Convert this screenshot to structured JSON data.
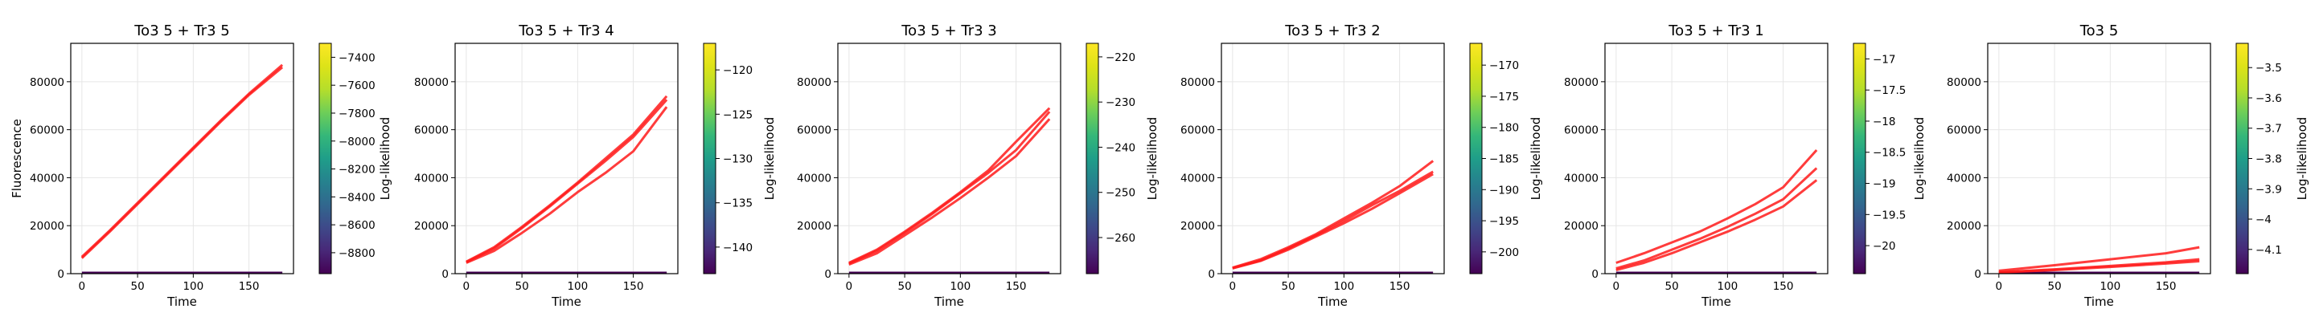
{
  "chart_data": [
    {
      "type": "line",
      "title": "To3 5 + Tr3 5",
      "xlabel": "Time",
      "ylabel": "Fluorescence",
      "xlim": [
        -10,
        190
      ],
      "ylim": [
        0,
        96000
      ],
      "xticks": [
        0,
        50,
        100,
        150
      ],
      "yticks": [
        0,
        20000,
        40000,
        60000,
        80000
      ],
      "series": [
        {
          "x": [
            0,
            25,
            50,
            75,
            100,
            125,
            150,
            180
          ],
          "y": [
            7000,
            18000,
            29500,
            41000,
            52500,
            64000,
            75000,
            87000
          ]
        },
        {
          "x": [
            0,
            25,
            50,
            75,
            100,
            125,
            150,
            180
          ],
          "y": [
            6500,
            17500,
            29000,
            40500,
            52000,
            63500,
            74500,
            86000
          ]
        }
      ],
      "colorbar": {
        "label": "Log-likelihood",
        "range": [
          -8950,
          -7300
        ],
        "ticks": [
          -8800,
          -8600,
          -8400,
          -8200,
          -8000,
          -7800,
          -7600,
          -7400
        ]
      }
    },
    {
      "type": "line",
      "title": "To3 5 + Tr3 4",
      "xlabel": "Time",
      "xlim": [
        -10,
        190
      ],
      "ylim": [
        0,
        96000
      ],
      "xticks": [
        0,
        50,
        100,
        150
      ],
      "yticks": [
        0,
        20000,
        40000,
        60000,
        80000
      ],
      "series": [
        {
          "x": [
            0,
            25,
            50,
            75,
            100,
            125,
            150,
            180
          ],
          "y": [
            5000,
            11000,
            19500,
            28500,
            38000,
            48000,
            58000,
            74000
          ]
        },
        {
          "x": [
            0,
            25,
            50,
            75,
            100,
            125,
            150,
            180
          ],
          "y": [
            4800,
            10500,
            19000,
            28000,
            37500,
            47000,
            57000,
            72500
          ]
        },
        {
          "x": [
            0,
            25,
            50,
            75,
            100,
            125,
            150,
            180
          ],
          "y": [
            4500,
            9500,
            17000,
            25000,
            34000,
            42000,
            51000,
            69500
          ]
        }
      ],
      "colorbar": {
        "label": "Log-likelihood",
        "range": [
          -143,
          -117
        ],
        "ticks": [
          -140,
          -135,
          -130,
          -125,
          -120
        ]
      }
    },
    {
      "type": "line",
      "title": "To3 5 + Tr3 3",
      "xlabel": "Time",
      "xlim": [
        -10,
        190
      ],
      "ylim": [
        0,
        96000
      ],
      "xticks": [
        0,
        50,
        100,
        150
      ],
      "yticks": [
        0,
        20000,
        40000,
        60000,
        80000
      ],
      "series": [
        {
          "x": [
            0,
            25,
            50,
            75,
            100,
            125,
            150,
            180
          ],
          "y": [
            4500,
            10000,
            17500,
            25500,
            34000,
            43000,
            55000,
            69000
          ]
        },
        {
          "x": [
            0,
            25,
            50,
            75,
            100,
            125,
            150,
            180
          ],
          "y": [
            4200,
            9500,
            17000,
            25000,
            33500,
            42000,
            51500,
            67500
          ]
        },
        {
          "x": [
            0,
            25,
            50,
            75,
            100,
            125,
            150,
            180
          ],
          "y": [
            3800,
            8500,
            16000,
            23500,
            31500,
            40000,
            49000,
            64500
          ]
        }
      ],
      "colorbar": {
        "label": "Log-likelihood",
        "range": [
          -268,
          -217
        ],
        "ticks": [
          -260,
          -250,
          -240,
          -230,
          -220
        ]
      }
    },
    {
      "type": "line",
      "title": "To3 5 + Tr3 2",
      "xlabel": "Time",
      "xlim": [
        -10,
        190
      ],
      "ylim": [
        0,
        96000
      ],
      "xticks": [
        0,
        50,
        100,
        150
      ],
      "yticks": [
        0,
        20000,
        40000,
        60000,
        80000
      ],
      "series": [
        {
          "x": [
            0,
            25,
            50,
            75,
            100,
            125,
            150,
            180
          ],
          "y": [
            2500,
            6000,
            11000,
            16500,
            23000,
            29500,
            36500,
            47000
          ]
        },
        {
          "x": [
            0,
            25,
            50,
            75,
            100,
            125,
            150,
            180
          ],
          "y": [
            2300,
            5500,
            10500,
            16000,
            22000,
            28500,
            34500,
            42500
          ]
        },
        {
          "x": [
            0,
            25,
            50,
            75,
            100,
            125,
            150,
            180
          ],
          "y": [
            2200,
            5300,
            10000,
            15500,
            21000,
            27000,
            33500,
            41500
          ]
        }
      ],
      "colorbar": {
        "label": "Log-likelihood",
        "range": [
          -203.5,
          -166.5
        ],
        "ticks": [
          -200,
          -195,
          -190,
          -185,
          -180,
          -175,
          -170
        ]
      }
    },
    {
      "type": "line",
      "title": "To3 5 + Tr3 1",
      "xlabel": "Time",
      "xlim": [
        -10,
        190
      ],
      "ylim": [
        0,
        96000
      ],
      "xticks": [
        0,
        50,
        100,
        150
      ],
      "yticks": [
        0,
        20000,
        40000,
        60000,
        80000
      ],
      "series": [
        {
          "x": [
            0,
            25,
            50,
            75,
            100,
            125,
            150,
            180
          ],
          "y": [
            4500,
            8500,
            13000,
            17500,
            23000,
            29000,
            36000,
            51500
          ]
        },
        {
          "x": [
            0,
            25,
            50,
            75,
            100,
            125,
            150,
            180
          ],
          "y": [
            2200,
            5500,
            10000,
            14500,
            19500,
            25000,
            31000,
            44000
          ]
        },
        {
          "x": [
            0,
            25,
            50,
            75,
            100,
            125,
            150,
            180
          ],
          "y": [
            1500,
            4500,
            8500,
            13000,
            17500,
            22500,
            28000,
            39000
          ]
        }
      ],
      "colorbar": {
        "label": "Log-likelihood",
        "range": [
          -20.45,
          -16.75
        ],
        "ticks": [
          -20.0,
          -19.5,
          -19.0,
          -18.5,
          -18.0,
          -17.5,
          -17.0
        ]
      }
    },
    {
      "type": "line",
      "title": "To3 5",
      "xlabel": "Time",
      "xlim": [
        -10,
        190
      ],
      "ylim": [
        0,
        96000
      ],
      "xticks": [
        0,
        50,
        100,
        150
      ],
      "yticks": [
        0,
        20000,
        40000,
        60000,
        80000
      ],
      "series": [
        {
          "x": [
            0,
            50,
            100,
            150,
            180
          ],
          "y": [
            1200,
            3500,
            6000,
            8500,
            11000
          ]
        },
        {
          "x": [
            0,
            50,
            100,
            150,
            180
          ],
          "y": [
            600,
            1800,
            3200,
            4700,
            6000
          ]
        },
        {
          "x": [
            0,
            50,
            100,
            150,
            180
          ],
          "y": [
            500,
            1500,
            2800,
            4200,
            5200
          ]
        }
      ],
      "colorbar": {
        "label": "Log-likelihood",
        "range": [
          -4.18,
          -3.42
        ],
        "ticks": [
          -4.1,
          -4.0,
          -3.9,
          -3.8,
          -3.7,
          -3.6,
          -3.5
        ]
      }
    }
  ]
}
